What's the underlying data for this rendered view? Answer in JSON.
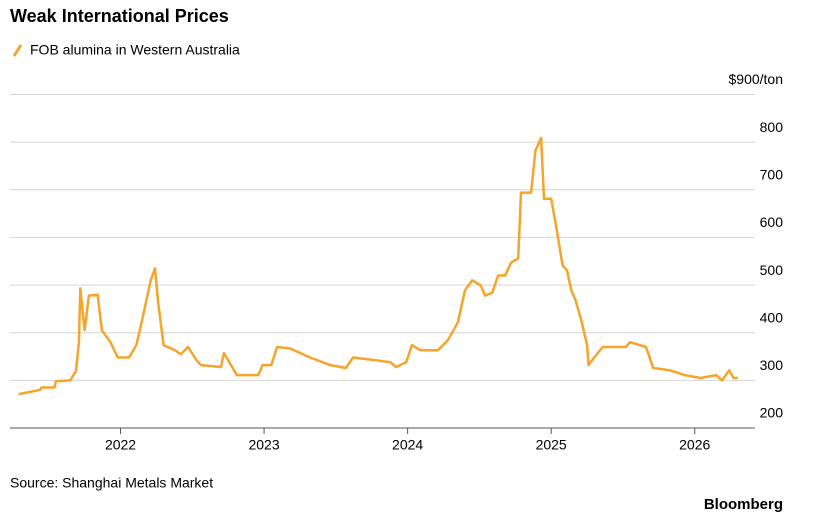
{
  "chart_data": {
    "type": "line",
    "title": "Weak International Prices",
    "source": "Source: Shanghai Metals Market",
    "brand": "Bloomberg",
    "series": [
      {
        "name": "FOB alumina in Western Australia",
        "color": "#f5a42c",
        "x": [
          2021.29,
          2021.44,
          2021.45,
          2021.54,
          2021.55,
          2021.65,
          2021.69,
          2021.71,
          2021.72,
          2021.75,
          2021.78,
          2021.84,
          2021.87,
          2021.93,
          2021.98,
          2022.06,
          2022.11,
          2022.15,
          2022.21,
          2022.24,
          2022.26,
          2022.3,
          2022.38,
          2022.42,
          2022.47,
          2022.53,
          2022.56,
          2022.7,
          2022.72,
          2022.77,
          2022.81,
          2022.96,
          2022.99,
          2023.05,
          2023.09,
          2023.18,
          2023.32,
          2023.46,
          2023.57,
          2023.62,
          2023.78,
          2023.88,
          2023.92,
          2023.99,
          2024.03,
          2024.09,
          2024.21,
          2024.28,
          2024.35,
          2024.4,
          2024.45,
          2024.51,
          2024.54,
          2024.59,
          2024.63,
          2024.68,
          2024.72,
          2024.77,
          2024.79,
          2024.86,
          2024.89,
          2024.93,
          2024.95,
          2025.0,
          2025.04,
          2025.08,
          2025.11,
          2025.14,
          2025.17,
          2025.21,
          2025.25,
          2025.26,
          2025.3,
          2025.36,
          2025.52,
          2025.55,
          2025.66,
          2025.68,
          2025.71,
          2025.83,
          2025.93,
          2026.04,
          2026.15,
          2026.19,
          2026.24,
          2026.27,
          2026.3
        ],
        "values": [
          271,
          280,
          285,
          285,
          298,
          300,
          320,
          380,
          493,
          405,
          478,
          480,
          405,
          380,
          348,
          348,
          374,
          426,
          510,
          535,
          468,
          374,
          363,
          355,
          370,
          342,
          332,
          328,
          357,
          332,
          311,
          311,
          332,
          332,
          370,
          367,
          348,
          332,
          326,
          348,
          342,
          338,
          328,
          338,
          374,
          363,
          363,
          384,
          422,
          489,
          510,
          499,
          478,
          484,
          520,
          520,
          547,
          556,
          694,
          694,
          782,
          809,
          681,
          681,
          614,
          541,
          531,
          489,
          468,
          426,
          374,
          332,
          348,
          370,
          370,
          380,
          370,
          353,
          326,
          321,
          311,
          305,
          311,
          300,
          321,
          305,
          305
        ]
      }
    ],
    "xlim": [
      2021.23,
      2026.42
    ],
    "xticks": [
      2022,
      2023,
      2024,
      2025,
      2026
    ],
    "ylim": [
      200,
      900
    ],
    "yticks": [
      200,
      300,
      400,
      500,
      600,
      700,
      800,
      {
        "value": 900,
        "label": "$900/ton"
      }
    ],
    "grid": true
  }
}
